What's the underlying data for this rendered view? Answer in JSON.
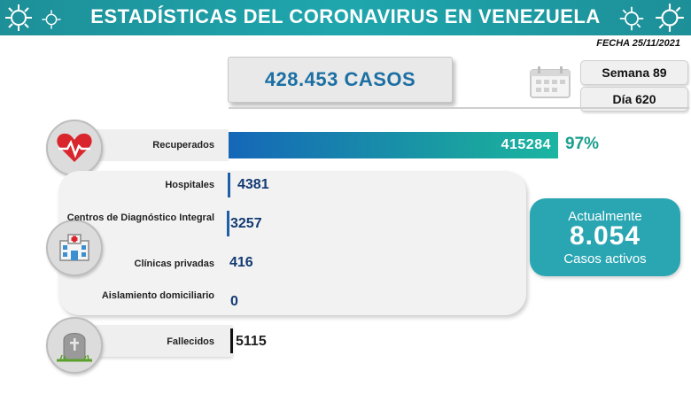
{
  "header": {
    "title": "ESTADÍSTICAS DEL CORONAVIRUS EN VENEZUELA"
  },
  "date": "FECHA 25/11/2021",
  "total_cases": "428.453 CASOS",
  "week_label": "Semana 89",
  "day_label": "Día 620",
  "recovered": {
    "label": "Recuperados",
    "value": "415284",
    "percent": "97%",
    "fraction": 0.97
  },
  "locations": [
    {
      "label": "Hospitales",
      "value": "4381"
    },
    {
      "label": "Centros de Diagnóstico Integral",
      "value": "3257"
    },
    {
      "label": "Clínicas privadas",
      "value": "416"
    },
    {
      "label": "Aislamiento domiciliario",
      "value": "0"
    }
  ],
  "active": {
    "line1": "Actualmente",
    "value": "8.054",
    "line2": "Casos activos"
  },
  "deaths": {
    "label": "Fallecidos",
    "value": "5115"
  },
  "colors": {
    "header": "#1fa6ad",
    "accent_blue": "#1b6fa3",
    "active_box": "#2aa6b3",
    "percent": "#1a9f8f"
  },
  "icons": [
    "virus-icon",
    "calendar-icon",
    "heart-icon",
    "hospital-icon",
    "tombstone-icon"
  ]
}
